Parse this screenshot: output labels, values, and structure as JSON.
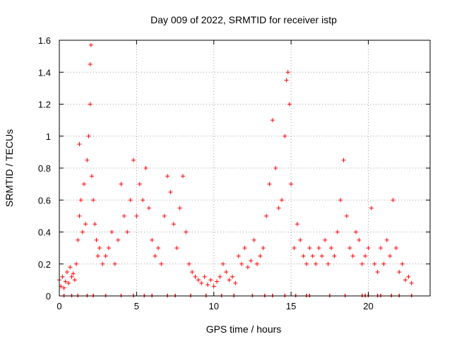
{
  "chart_data": {
    "type": "scatter",
    "title": "Day 009 of 2022, SRMTID for receiver istp",
    "xlabel": "GPS time / hours",
    "ylabel": "SRMTID / TECUs",
    "xlim": [
      0,
      24
    ],
    "ylim": [
      0,
      1.6
    ],
    "xticks": [
      0,
      5,
      10,
      15,
      20
    ],
    "xtick_labels": [
      "0",
      "5",
      "10",
      "15",
      "20"
    ],
    "yticks": [
      0,
      0.2,
      0.4,
      0.6,
      0.8,
      1,
      1.2,
      1.4,
      1.6
    ],
    "ytick_labels": [
      "0",
      "0.2",
      "0.4",
      "0.6",
      "0.8",
      "1",
      "1.2",
      "1.4",
      "1.6"
    ],
    "grid": true,
    "marker": "+",
    "color": "#ff0000",
    "series": [
      {
        "name": "SRMTID",
        "points": [
          [
            0.0,
            0.1
          ],
          [
            0.1,
            0.06
          ],
          [
            0.2,
            0.12
          ],
          [
            0.3,
            0.05
          ],
          [
            0.4,
            0.09
          ],
          [
            0.5,
            0.15
          ],
          [
            0.6,
            0.08
          ],
          [
            0.7,
            0.18
          ],
          [
            0.8,
            0.12
          ],
          [
            0.9,
            0.14
          ],
          [
            1.0,
            0.1
          ],
          [
            1.1,
            0.2
          ],
          [
            1.2,
            0.35
          ],
          [
            1.3,
            0.5
          ],
          [
            1.3,
            0.95
          ],
          [
            1.4,
            0.6
          ],
          [
            1.5,
            0.4
          ],
          [
            1.6,
            0.7
          ],
          [
            1.7,
            0.45
          ],
          [
            1.8,
            0.85
          ],
          [
            1.9,
            1.0
          ],
          [
            2.0,
            1.2
          ],
          [
            2.0,
            1.45
          ],
          [
            2.05,
            1.57
          ],
          [
            2.1,
            0.75
          ],
          [
            2.2,
            0.6
          ],
          [
            2.3,
            0.45
          ],
          [
            2.4,
            0.35
          ],
          [
            2.5,
            0.25
          ],
          [
            2.6,
            0.3
          ],
          [
            2.8,
            0.2
          ],
          [
            3.0,
            0.25
          ],
          [
            3.2,
            0.3
          ],
          [
            3.4,
            0.4
          ],
          [
            3.6,
            0.2
          ],
          [
            3.8,
            0.35
          ],
          [
            4.0,
            0.7
          ],
          [
            4.2,
            0.5
          ],
          [
            4.4,
            0.4
          ],
          [
            4.6,
            0.6
          ],
          [
            4.8,
            0.85
          ],
          [
            5.0,
            0.5
          ],
          [
            5.2,
            0.7
          ],
          [
            5.4,
            0.6
          ],
          [
            5.6,
            0.8
          ],
          [
            5.8,
            0.55
          ],
          [
            6.0,
            0.35
          ],
          [
            6.2,
            0.25
          ],
          [
            6.4,
            0.3
          ],
          [
            6.6,
            0.2
          ],
          [
            6.8,
            0.5
          ],
          [
            7.0,
            0.75
          ],
          [
            7.2,
            0.65
          ],
          [
            7.4,
            0.45
          ],
          [
            7.6,
            0.3
          ],
          [
            7.8,
            0.55
          ],
          [
            8.0,
            0.75
          ],
          [
            8.2,
            0.4
          ],
          [
            8.4,
            0.2
          ],
          [
            8.6,
            0.15
          ],
          [
            8.8,
            0.12
          ],
          [
            9.0,
            0.1
          ],
          [
            9.2,
            0.08
          ],
          [
            9.4,
            0.12
          ],
          [
            9.6,
            0.07
          ],
          [
            9.8,
            0.1
          ],
          [
            10.0,
            0.06
          ],
          [
            10.2,
            0.09
          ],
          [
            10.4,
            0.12
          ],
          [
            10.6,
            0.2
          ],
          [
            10.8,
            0.15
          ],
          [
            11.0,
            0.1
          ],
          [
            11.2,
            0.12
          ],
          [
            11.4,
            0.08
          ],
          [
            11.6,
            0.25
          ],
          [
            11.8,
            0.2
          ],
          [
            12.0,
            0.3
          ],
          [
            12.2,
            0.18
          ],
          [
            12.4,
            0.22
          ],
          [
            12.6,
            0.35
          ],
          [
            12.8,
            0.2
          ],
          [
            13.0,
            0.25
          ],
          [
            13.2,
            0.3
          ],
          [
            13.4,
            0.5
          ],
          [
            13.6,
            0.7
          ],
          [
            13.8,
            1.1
          ],
          [
            14.0,
            0.8
          ],
          [
            14.2,
            0.55
          ],
          [
            14.4,
            0.6
          ],
          [
            14.6,
            1.0
          ],
          [
            14.7,
            1.35
          ],
          [
            14.8,
            1.4
          ],
          [
            14.9,
            1.2
          ],
          [
            15.0,
            0.7
          ],
          [
            15.2,
            0.3
          ],
          [
            15.4,
            0.45
          ],
          [
            15.6,
            0.35
          ],
          [
            15.8,
            0.25
          ],
          [
            16.0,
            0.2
          ],
          [
            16.2,
            0.3
          ],
          [
            16.4,
            0.25
          ],
          [
            16.6,
            0.2
          ],
          [
            16.8,
            0.3
          ],
          [
            17.0,
            0.25
          ],
          [
            17.2,
            0.35
          ],
          [
            17.4,
            0.2
          ],
          [
            17.6,
            0.3
          ],
          [
            17.8,
            0.25
          ],
          [
            18.0,
            0.4
          ],
          [
            18.2,
            0.6
          ],
          [
            18.4,
            0.85
          ],
          [
            18.6,
            0.5
          ],
          [
            18.8,
            0.3
          ],
          [
            19.0,
            0.25
          ],
          [
            19.2,
            0.4
          ],
          [
            19.4,
            0.35
          ],
          [
            19.6,
            0.2
          ],
          [
            19.8,
            0.25
          ],
          [
            20.0,
            0.3
          ],
          [
            20.2,
            0.55
          ],
          [
            20.4,
            0.2
          ],
          [
            20.6,
            0.15
          ],
          [
            20.8,
            0.3
          ],
          [
            21.0,
            0.2
          ],
          [
            21.2,
            0.35
          ],
          [
            21.4,
            0.25
          ],
          [
            21.6,
            0.6
          ],
          [
            21.8,
            0.3
          ],
          [
            22.0,
            0.15
          ],
          [
            22.2,
            0.2
          ],
          [
            22.4,
            0.1
          ],
          [
            22.6,
            0.12
          ],
          [
            22.8,
            0.08
          ]
        ]
      }
    ],
    "baseline_markers_x": [
      0.3,
      0.8,
      1.2,
      1.8,
      2.2,
      3.0,
      4.0,
      4.8,
      5.5,
      6.0,
      7.0,
      7.5,
      8.5,
      9.5,
      10.5,
      11.3,
      12.5,
      13.3,
      13.8,
      14.6,
      15.3,
      16.0,
      16.2,
      17.5,
      18.5,
      19.6,
      19.8,
      20.0,
      20.6,
      20.8,
      21.5,
      22.0,
      22.8
    ]
  }
}
